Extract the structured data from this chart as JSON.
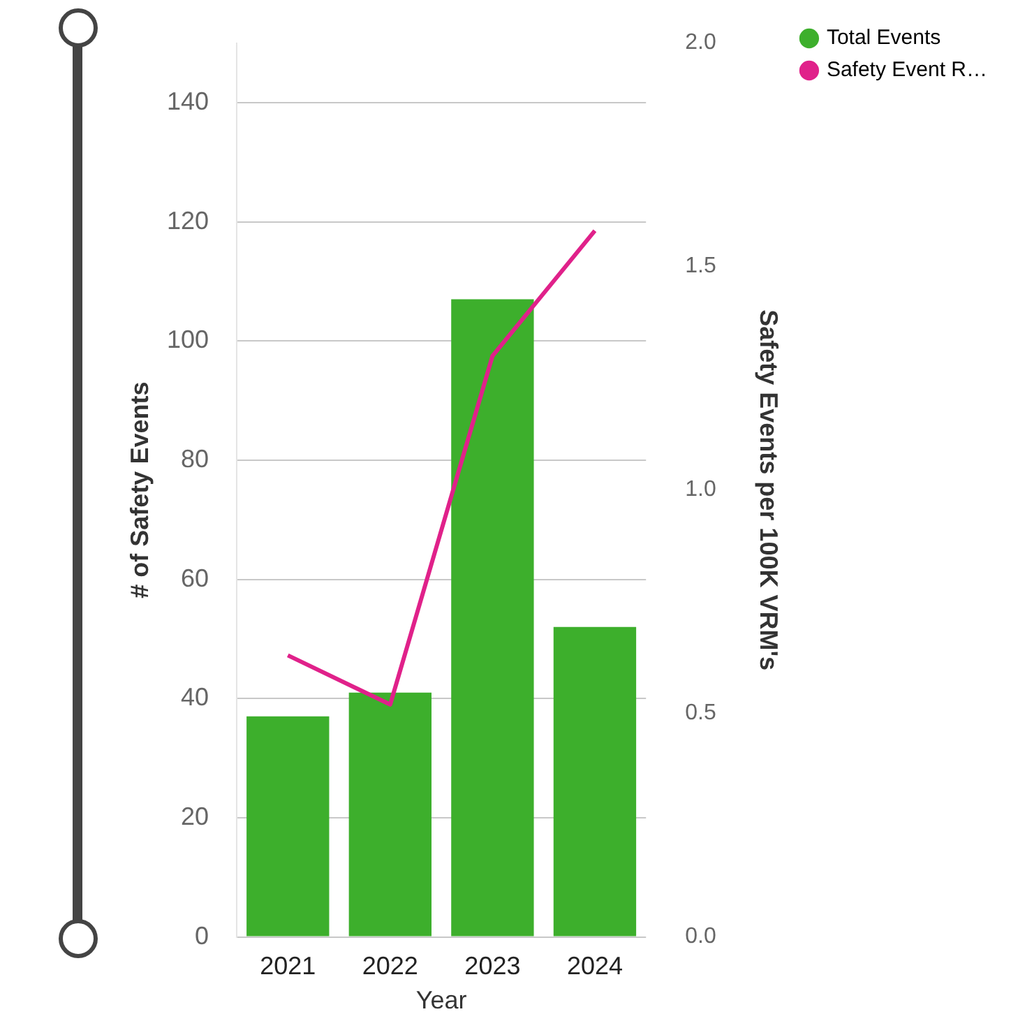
{
  "chart_data": {
    "type": "bar",
    "categories": [
      "2021",
      "2022",
      "2023",
      "2024"
    ],
    "xlabel": "Year",
    "ylabel": "# of Safety Events",
    "y2label": "Safety Events per 100K VRM's",
    "series": [
      {
        "name": "Total Events",
        "color": "#3daf2c",
        "values": [
          37,
          41,
          107,
          52
        ]
      },
      {
        "name": "Safety Event R…",
        "type": "line",
        "axis": "y2",
        "color": "#e0218a",
        "values": [
          0.63,
          0.52,
          1.3,
          1.58
        ]
      }
    ],
    "ylim": [
      0,
      150
    ],
    "yticks": [
      0,
      20,
      40,
      60,
      80,
      100,
      120,
      140
    ],
    "y2lim": [
      0,
      2
    ],
    "y2ticks": [
      {
        "value": 0,
        "label": "0.0"
      },
      {
        "value": 0.5,
        "label": "0.5"
      },
      {
        "value": 1,
        "label": "1.0"
      },
      {
        "value": 1.5,
        "label": "1.5"
      },
      {
        "value": 2,
        "label": "2.0"
      }
    ],
    "grid": "y",
    "legend": "top right",
    "marker": "none"
  }
}
